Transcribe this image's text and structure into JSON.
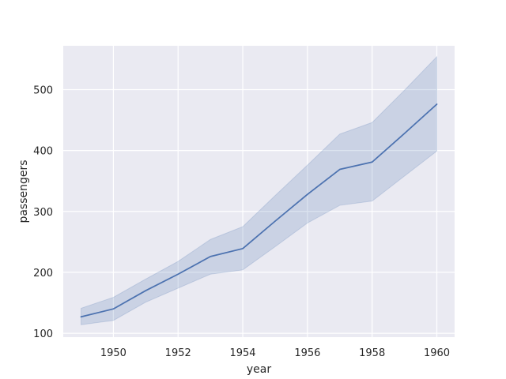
{
  "chart_data": {
    "type": "line",
    "xlabel": "year",
    "ylabel": "passengers",
    "xlim": [
      1948.45,
      1960.55
    ],
    "ylim": [
      93.6,
      571.9
    ],
    "xticks": [
      1950,
      1952,
      1954,
      1956,
      1958,
      1960
    ],
    "yticks": [
      100,
      200,
      300,
      400,
      500
    ],
    "grid": true,
    "legend": "none",
    "series": [
      {
        "x": [
          1949,
          1950,
          1951,
          1952,
          1953,
          1954,
          1955,
          1956,
          1957,
          1958,
          1959,
          1960
        ],
        "y": [
          127,
          140,
          170,
          197,
          226,
          239,
          284,
          328,
          369,
          381,
          428,
          476
        ],
        "ci_lower": [
          114,
          121,
          151,
          174,
          197,
          204,
          242,
          281,
          310,
          317,
          358,
          399
        ],
        "ci_upper": [
          141,
          159,
          189,
          218,
          254,
          275,
          326,
          376,
          427,
          446,
          499,
          554
        ]
      }
    ],
    "colors": {
      "background": "#eaeaf2",
      "grid": "#ffffff",
      "line": "#4c72b0",
      "band": "#4c72b0"
    }
  }
}
